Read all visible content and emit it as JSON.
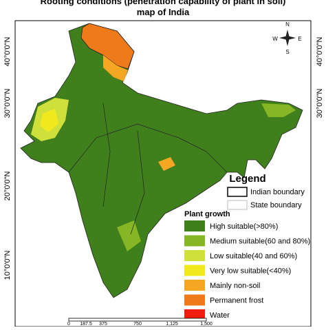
{
  "header": {
    "title_lines": [
      "Rooting conditions (penetration capability of plant in soil)",
      "map of India"
    ]
  },
  "latitude_labels": {
    "left": [
      "40°0'0\"N",
      "30°0'0\"N",
      "20°0'0\"N",
      "10°0'0\"N"
    ],
    "right": [
      "40°0'0\"N",
      "30°0'0\"N"
    ]
  },
  "compass": [
    "N",
    "E",
    "S",
    "W"
  ],
  "legend": {
    "title": "Legend",
    "boundaries": [
      "Indian boundary",
      "State boundary"
    ],
    "plant_growth_title": "Plant growth",
    "items": [
      {
        "label": "High suitable(>80%)",
        "color": "#3f7f1c"
      },
      {
        "label": "Medium suitable(60 and 80%)",
        "color": "#86b624"
      },
      {
        "label": "Low suitable(40 and 60%)",
        "color": "#cfe03a"
      },
      {
        "label": "Very low suitable(<40%)",
        "color": "#f2e81e"
      },
      {
        "label": "Mainly non-soil",
        "color": "#f5a623"
      },
      {
        "label": "Permanent frost",
        "color": "#ef7a1a"
      },
      {
        "label": "Water",
        "color": "#f01e0e"
      }
    ]
  },
  "scale_bar": [
    "0",
    "187.5",
    "375",
    "750",
    "1,125",
    "1,500"
  ]
}
